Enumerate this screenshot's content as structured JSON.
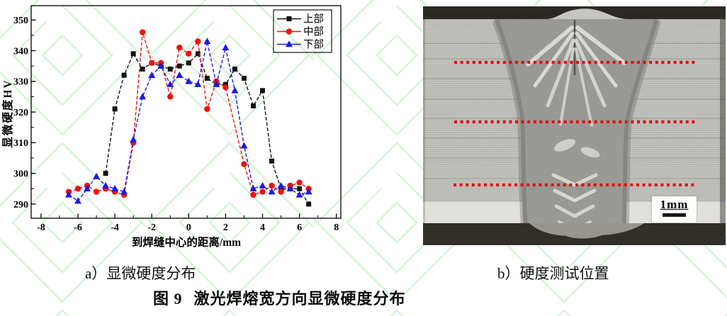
{
  "page": {
    "background": "#ffffff",
    "watermark_color": "#b7eab7"
  },
  "figure": {
    "panel_a_caption": "a）显微硬度分布",
    "panel_b_caption": "b）硬度测试位置",
    "caption_label": "图 9",
    "caption_title": "激光焊熔宽方向显微硬度分布"
  },
  "chart_data": {
    "type": "line",
    "title": "",
    "xlabel": "到焊缝中心的距离/mm",
    "ylabel": "显微硬度HV",
    "xlim": [
      -8,
      8
    ],
    "ylim": [
      286,
      354
    ],
    "x_ticks": [
      -8,
      -6,
      -4,
      -2,
      0,
      2,
      4,
      6,
      8
    ],
    "y_ticks": [
      290,
      300,
      310,
      320,
      330,
      340,
      350
    ],
    "grid": false,
    "legend_position": "top-right",
    "series": [
      {
        "name": "上部",
        "color": "#121212",
        "marker": "square",
        "points": [
          [
            -4.5,
            300
          ],
          [
            -4,
            321
          ],
          [
            -3.5,
            332
          ],
          [
            -3,
            339
          ],
          [
            -2.5,
            334
          ],
          [
            -2,
            336
          ],
          [
            -1.5,
            335
          ],
          [
            -1,
            334
          ],
          [
            -0.5,
            335
          ],
          [
            0,
            336
          ],
          [
            0.5,
            339
          ],
          [
            1,
            331
          ],
          [
            1.5,
            329
          ],
          [
            2,
            329
          ],
          [
            2.5,
            334
          ],
          [
            3,
            331
          ],
          [
            3.5,
            322
          ],
          [
            4,
            327
          ],
          [
            4.5,
            304
          ],
          [
            5,
            295
          ],
          [
            5.5,
            295
          ],
          [
            6,
            295
          ],
          [
            6.5,
            290
          ]
        ]
      },
      {
        "name": "中部",
        "color": "#ee1111",
        "marker": "circle",
        "points": [
          [
            -6.5,
            294
          ],
          [
            -6,
            295
          ],
          [
            -5.5,
            296
          ],
          [
            -5,
            294
          ],
          [
            -4.5,
            295
          ],
          [
            -4,
            294
          ],
          [
            -3.5,
            293
          ],
          [
            -3,
            310
          ],
          [
            -2.5,
            346
          ],
          [
            -2,
            336
          ],
          [
            -1.5,
            336
          ],
          [
            -1,
            325
          ],
          [
            -0.5,
            341
          ],
          [
            0,
            339
          ],
          [
            0.5,
            343
          ],
          [
            1,
            321
          ],
          [
            1.5,
            330
          ],
          [
            2,
            328
          ],
          [
            3,
            303
          ],
          [
            3.5,
            293
          ],
          [
            4,
            294
          ],
          [
            4.5,
            296
          ],
          [
            5,
            294
          ],
          [
            5.5,
            296
          ],
          [
            6,
            297
          ],
          [
            6.5,
            295
          ]
        ]
      },
      {
        "name": "下部",
        "color": "#1b1bdf",
        "marker": "triangle",
        "points": [
          [
            -6.5,
            293
          ],
          [
            -6,
            291
          ],
          [
            -5.5,
            295
          ],
          [
            -5,
            299
          ],
          [
            -4.5,
            296
          ],
          [
            -4,
            295
          ],
          [
            -3.5,
            294
          ],
          [
            -3,
            311
          ],
          [
            -2.5,
            325
          ],
          [
            -2,
            332
          ],
          [
            -1.5,
            335
          ],
          [
            -1,
            329
          ],
          [
            -0.5,
            332
          ],
          [
            0,
            330
          ],
          [
            0.5,
            329
          ],
          [
            1,
            343
          ],
          [
            1.5,
            329
          ],
          [
            2,
            341
          ],
          [
            2.5,
            327
          ],
          [
            3,
            309
          ],
          [
            3.5,
            295
          ],
          [
            4,
            296
          ],
          [
            4.5,
            294
          ],
          [
            5,
            296
          ],
          [
            5.5,
            295
          ],
          [
            6,
            293
          ],
          [
            6.5,
            294
          ]
        ]
      }
    ]
  },
  "micrograph": {
    "scale_label": "1mm",
    "test_line_color": "#dd1111",
    "test_lines_count": 3
  }
}
